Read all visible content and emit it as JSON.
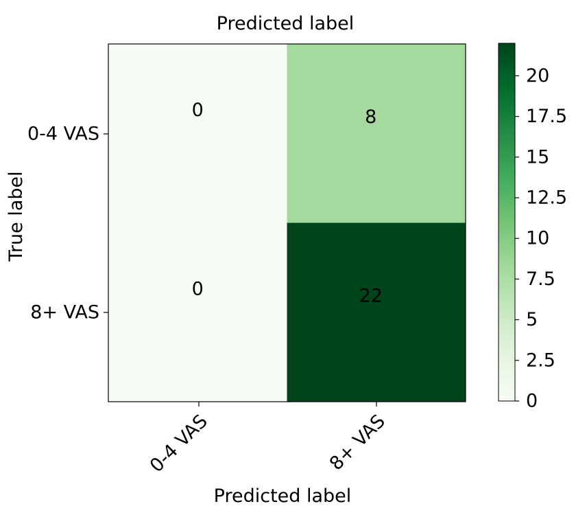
{
  "chart_data": {
    "type": "heatmap",
    "title": "Predicted label",
    "xlabel": "Predicted label",
    "ylabel": "True label",
    "x_categories": [
      "0-4 VAS",
      "8+ VAS"
    ],
    "y_categories": [
      "0-4 VAS",
      "8+ VAS"
    ],
    "values": [
      [
        0,
        8
      ],
      [
        0,
        22
      ]
    ],
    "cell_labels": [
      [
        "0",
        "8"
      ],
      [
        "0",
        "22"
      ]
    ],
    "colormap": "Greens",
    "colorbar": {
      "range": [
        0,
        22
      ],
      "ticks": [
        0,
        2.5,
        5,
        7.5,
        10,
        12.5,
        15,
        17.5,
        20
      ],
      "tick_labels": [
        "0",
        "2.5",
        "5",
        "7.5",
        "10",
        "12.5",
        "15",
        "17.5",
        "20"
      ]
    },
    "colors": {
      "low": "#f7fcf5",
      "high": "#00441b",
      "light_text": "#ffffff",
      "dark_text": "#000000"
    }
  }
}
